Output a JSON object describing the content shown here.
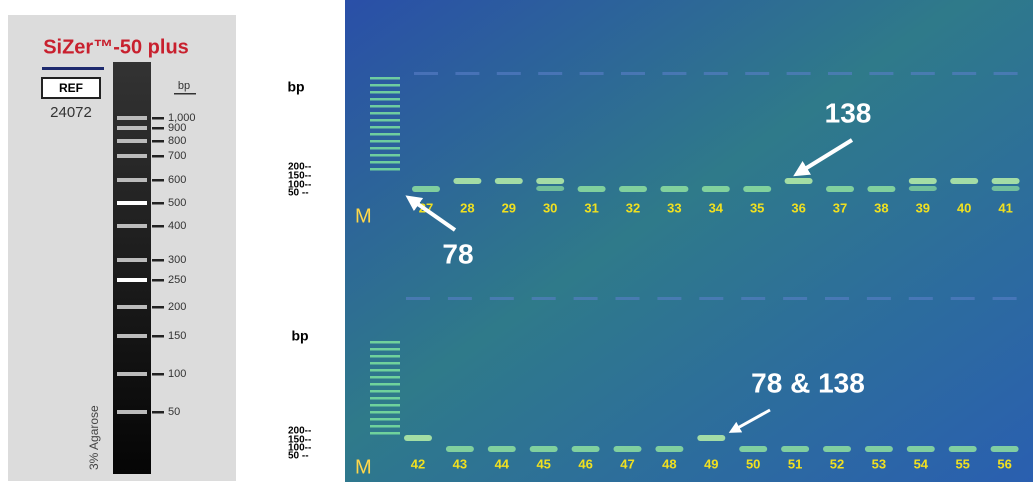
{
  "ladder_panel": {
    "title": "SiZer™-50 plus",
    "ref_box": "REF",
    "ref_number": "24072",
    "unit": "bp",
    "sizes": [
      "1,000",
      "900",
      "800",
      "700",
      "600",
      "500",
      "400",
      "300",
      "250",
      "200",
      "150",
      "100",
      "50"
    ],
    "gel_note": "3% Agarose"
  },
  "gel": {
    "top": {
      "unit": "bp",
      "size_labels": [
        "200--",
        "150--",
        "100--",
        "50 --"
      ],
      "marker": "M",
      "lanes": [
        "27",
        "28",
        "29",
        "30",
        "31",
        "32",
        "33",
        "34",
        "35",
        "36",
        "37",
        "38",
        "39",
        "40",
        "41"
      ],
      "annotations": [
        "138",
        "78"
      ]
    },
    "bottom": {
      "unit": "bp",
      "size_labels": [
        "200--",
        "150--",
        "100--",
        "50 --"
      ],
      "marker": "M",
      "lanes": [
        "42",
        "43",
        "44",
        "45",
        "46",
        "47",
        "48",
        "49",
        "50",
        "51",
        "52",
        "53",
        "54",
        "55",
        "56"
      ],
      "annotations": [
        "78 & 138"
      ]
    }
  }
}
